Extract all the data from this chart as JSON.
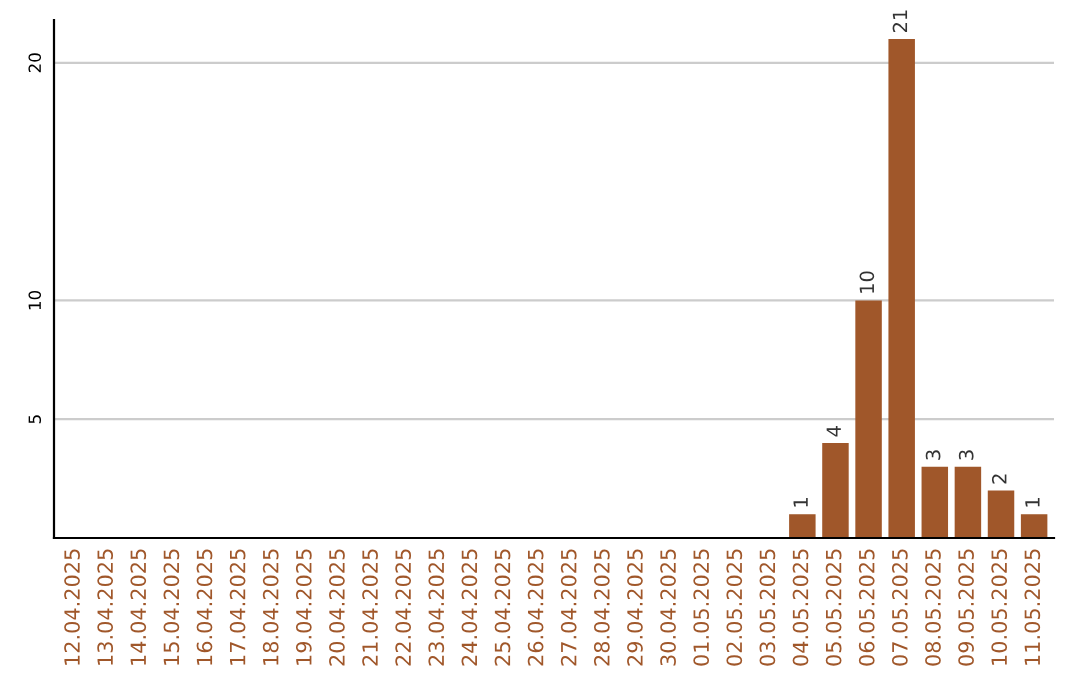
{
  "chart_data": {
    "type": "bar",
    "categories": [
      "12.04.2025",
      "13.04.2025",
      "14.04.2025",
      "15.04.2025",
      "16.04.2025",
      "17.04.2025",
      "18.04.2025",
      "19.04.2025",
      "20.04.2025",
      "21.04.2025",
      "22.04.2025",
      "23.04.2025",
      "24.04.2025",
      "25.04.2025",
      "26.04.2025",
      "27.04.2025",
      "28.04.2025",
      "29.04.2025",
      "30.04.2025",
      "01.05.2025",
      "02.05.2025",
      "03.05.2025",
      "04.05.2025",
      "05.05.2025",
      "06.05.2025",
      "07.05.2025",
      "08.05.2025",
      "09.05.2025",
      "10.05.2025",
      "11.05.2025"
    ],
    "values": [
      0,
      0,
      0,
      0,
      0,
      0,
      0,
      0,
      0,
      0,
      0,
      0,
      0,
      0,
      0,
      0,
      0,
      0,
      0,
      0,
      0,
      0,
      1,
      4,
      10,
      21,
      3,
      3,
      2,
      1
    ],
    "value_labels": [
      null,
      null,
      null,
      null,
      null,
      null,
      null,
      null,
      null,
      null,
      null,
      null,
      null,
      null,
      null,
      null,
      null,
      null,
      null,
      null,
      null,
      null,
      "1",
      "4",
      "10",
      "21",
      "3",
      "3",
      "2",
      "1"
    ],
    "color": "#a0572a",
    "ylim": [
      0,
      21.8
    ],
    "yticks": [
      5,
      10,
      20
    ],
    "grid": "y"
  }
}
